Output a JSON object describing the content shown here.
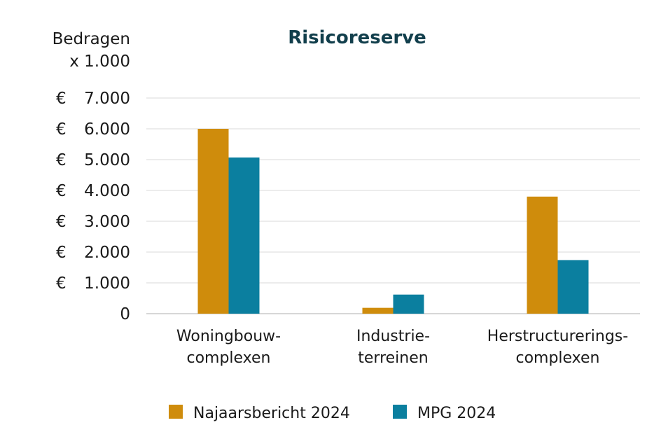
{
  "chart_data": {
    "type": "bar",
    "title": "Risicoreserve",
    "ylabel_line1": "Bedragen",
    "ylabel_line2": "x 1.000",
    "currency_symbol": "€",
    "categories": [
      [
        "Woningbouw-",
        "complexen"
      ],
      [
        "Industrie-",
        "terreinen"
      ],
      [
        "Herstructurerings-",
        "complexen"
      ]
    ],
    "y_ticks": [
      {
        "value": 0,
        "label": "0"
      },
      {
        "value": 1000,
        "label": "1.000"
      },
      {
        "value": 2000,
        "label": "2.000"
      },
      {
        "value": 3000,
        "label": "3.000"
      },
      {
        "value": 4000,
        "label": "4.000"
      },
      {
        "value": 5000,
        "label": "5.000"
      },
      {
        "value": 6000,
        "label": "6.000"
      },
      {
        "value": 7000,
        "label": "7.000"
      }
    ],
    "ylim": [
      0,
      7000
    ],
    "grid": true,
    "legend_position": "bottom",
    "series": [
      {
        "name": "Najaarsbericht 2024",
        "color": "#cf8c0c",
        "values": [
          6000,
          190,
          3800
        ]
      },
      {
        "name": "MPG 2024",
        "color": "#0b7f9f",
        "values": [
          5070,
          620,
          1740
        ]
      }
    ]
  }
}
